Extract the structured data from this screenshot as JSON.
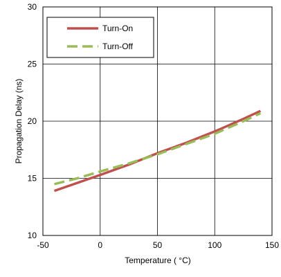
{
  "chart_data": {
    "type": "line",
    "xlabel": "Temperature ( °C)",
    "ylabel": "Propagation Delay (ns)",
    "xlim": [
      -50,
      150
    ],
    "ylim": [
      10,
      30
    ],
    "xticks": [
      -50,
      0,
      50,
      100,
      150
    ],
    "yticks": [
      10,
      15,
      20,
      25,
      30
    ],
    "xtick_labels": [
      "-50",
      "0",
      "50",
      "100",
      "150"
    ],
    "ytick_labels": [
      "10",
      "15",
      "20",
      "25",
      "30"
    ],
    "grid": true,
    "legend_position": "top-left",
    "series": [
      {
        "name": "Turn-On",
        "color": "#c0504d",
        "dash": "solid",
        "x": [
          -40,
          -20,
          0,
          25,
          50,
          75,
          100,
          125,
          140
        ],
        "y": [
          13.9,
          14.6,
          15.3,
          16.2,
          17.2,
          18.1,
          19.1,
          20.2,
          20.9
        ]
      },
      {
        "name": "Turn-Off",
        "color": "#9bbb59",
        "dash": "dashed",
        "x": [
          -40,
          -20,
          0,
          25,
          50,
          75,
          100,
          125,
          140
        ],
        "y": [
          14.5,
          15.0,
          15.6,
          16.3,
          17.1,
          18.0,
          18.9,
          20.0,
          20.7
        ]
      }
    ]
  }
}
